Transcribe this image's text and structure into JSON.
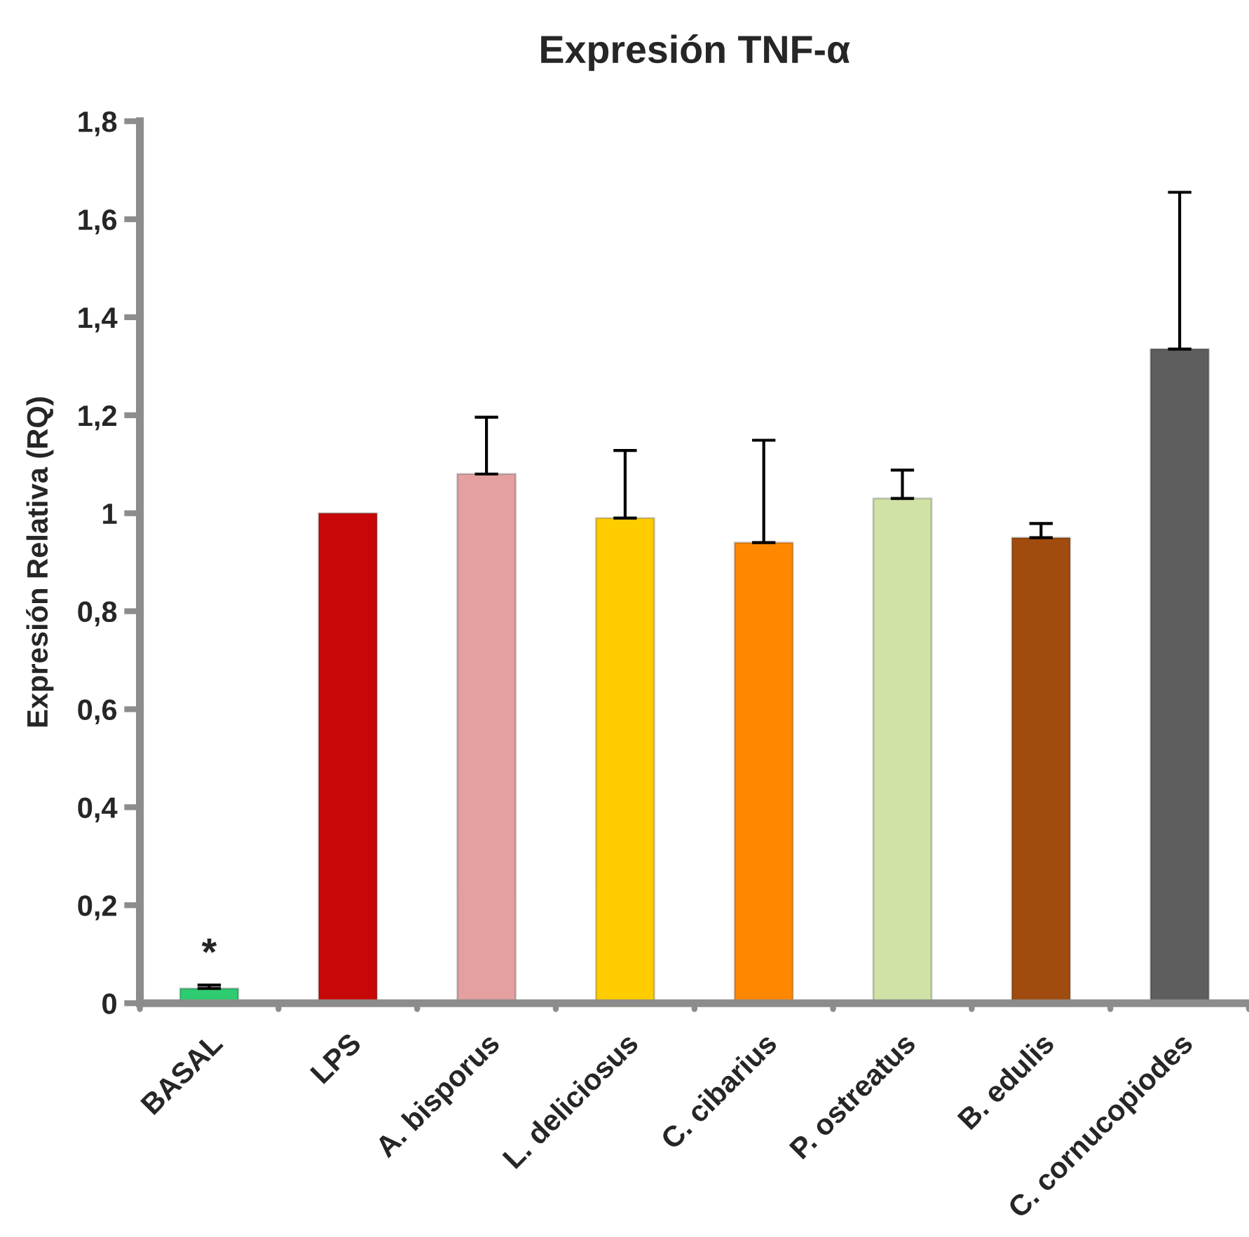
{
  "chart_data": {
    "type": "bar",
    "title": "Expresión TNF-α",
    "ylabel": "Expresión Relativa (RQ)",
    "categories": [
      "BASAL",
      "LPS",
      "A. bisporus",
      "L. deliciosus",
      "C. cibarius",
      "P. ostreatus",
      "B. edulis",
      "C. cornucopiodes"
    ],
    "values": [
      0.03,
      1.0,
      1.08,
      0.99,
      0.94,
      1.03,
      0.95,
      1.335
    ],
    "colors": [
      "#2ecc71",
      "#c80808",
      "#e4a0a0",
      "#ffcc00",
      "#ff8800",
      "#d0e2a6",
      "#a04c0e",
      "#5e5e5e"
    ],
    "errors": [
      [
        0.03,
        0.037
      ],
      null,
      [
        1.08,
        1.196
      ],
      [
        0.99,
        1.128
      ],
      [
        0.94,
        1.149
      ],
      [
        1.03,
        1.088
      ],
      [
        0.95,
        0.979
      ],
      [
        1.335,
        1.655
      ]
    ],
    "ylim": [
      0,
      1.8
    ],
    "yticks": [
      0,
      {
        "value": 0.2,
        "label": "0,2"
      },
      {
        "value": 0.4,
        "label": "0,4"
      },
      {
        "value": 0.6,
        "label": "0,6"
      },
      {
        "value": 0.8,
        "label": "0,8"
      },
      1,
      {
        "value": 1.2,
        "label": "1,2"
      },
      {
        "value": 1.4,
        "label": "1,4"
      },
      {
        "value": 1.6,
        "label": "1,6"
      },
      {
        "value": 1.8,
        "label": "1,8"
      }
    ],
    "annotations": [
      "*"
    ],
    "grid": false,
    "legend": false
  }
}
